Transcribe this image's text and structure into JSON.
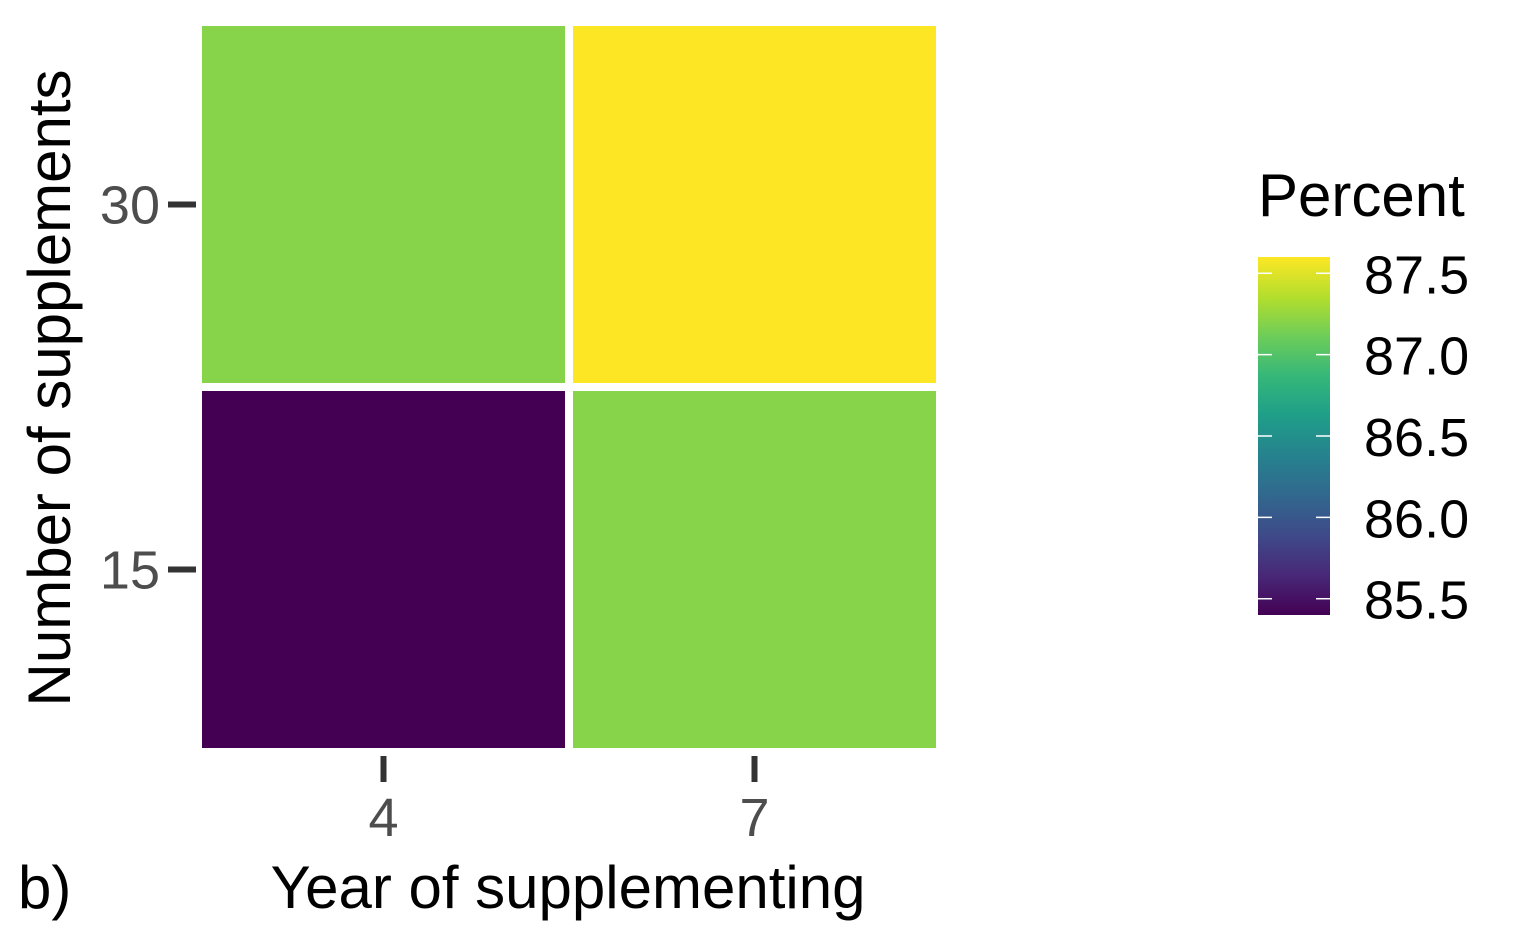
{
  "chart_data": {
    "type": "heatmap",
    "panel_label": "b)",
    "xlabel": "Year of supplementing",
    "ylabel": "Number of supplements",
    "x_categories": [
      "4",
      "7"
    ],
    "y_categories": [
      "15",
      "30"
    ],
    "cells": [
      {
        "x": "4",
        "y": "30",
        "value": 87.2
      },
      {
        "x": "7",
        "y": "30",
        "value": 87.6
      },
      {
        "x": "4",
        "y": "15",
        "value": 85.4
      },
      {
        "x": "7",
        "y": "15",
        "value": 87.2
      }
    ],
    "legend": {
      "title": "Percent",
      "breaks": [
        "85.5",
        "86.0",
        "86.5",
        "87.0",
        "87.5"
      ],
      "break_values": [
        85.5,
        86.0,
        86.5,
        87.0,
        87.5
      ],
      "min": 85.4,
      "max": 87.6,
      "placement": "right",
      "palette": [
        "#440154",
        "#482878",
        "#3E4A89",
        "#31688E",
        "#26828E",
        "#1F9E89",
        "#35B779",
        "#6DCD59",
        "#B4DE2C",
        "#FDE725"
      ]
    },
    "grid": false,
    "tile_border_color": "#ffffff"
  }
}
